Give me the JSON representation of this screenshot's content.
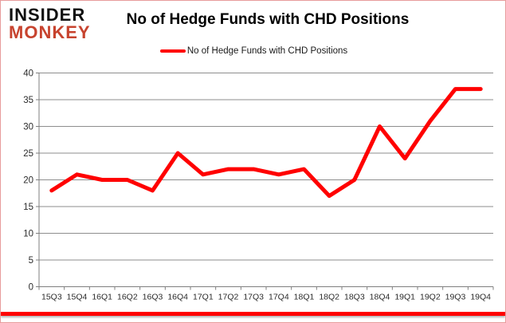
{
  "logo": {
    "line1": "INSIDER",
    "line2": "MONKEY"
  },
  "header": {
    "title": "No of Hedge Funds with CHD Positions"
  },
  "legend": {
    "label": "No of Hedge Funds with CHD Positions"
  },
  "colors": {
    "line": "#ff0000",
    "logo_accent": "#c7432e",
    "logo_main": "#111111",
    "grid": "#8e8e8e",
    "axis": "#7f7f7f",
    "tick_label": "#2b2b2b",
    "page_border": "#e79c9c",
    "bottom_bar": "#ff0000",
    "background": "#ffffff"
  },
  "chart_data": {
    "type": "line",
    "title": "No of Hedge Funds with CHD Positions",
    "categories": [
      "15Q3",
      "15Q4",
      "16Q1",
      "16Q2",
      "16Q3",
      "16Q4",
      "17Q1",
      "17Q2",
      "17Q3",
      "17Q4",
      "18Q1",
      "18Q2",
      "18Q3",
      "18Q4",
      "19Q1",
      "19Q2",
      "19Q3",
      "19Q4"
    ],
    "series": [
      {
        "name": "No of Hedge Funds with CHD Positions",
        "values": [
          18,
          21,
          20,
          20,
          18,
          25,
          21,
          22,
          22,
          21,
          22,
          17,
          20,
          30,
          24,
          31,
          37,
          37
        ]
      }
    ],
    "xlabel": "",
    "ylabel": "",
    "ylim": [
      0,
      40
    ],
    "yticks": [
      0,
      5,
      10,
      15,
      20,
      25,
      30,
      35,
      40
    ],
    "grid": true,
    "legend_position": "top-center"
  }
}
